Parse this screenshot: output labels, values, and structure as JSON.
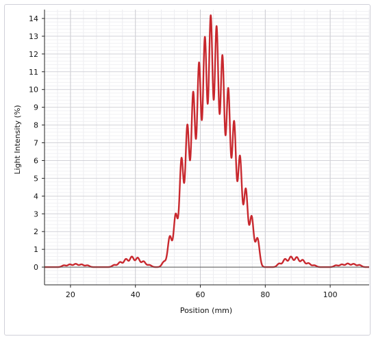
{
  "chart_data": {
    "type": "line",
    "title": "",
    "xlabel": "Position (mm)",
    "ylabel": "Light Intensity (%)",
    "xlim": [
      12,
      112
    ],
    "ylim": [
      -1,
      14.5
    ],
    "x_ticks": [
      20,
      40,
      60,
      80,
      100
    ],
    "y_ticks": [
      0,
      1,
      2,
      3,
      4,
      5,
      6,
      7,
      8,
      9,
      10,
      11,
      12,
      13,
      14
    ],
    "grid": true,
    "legend": "none",
    "series": [
      {
        "color": "#c8282e",
        "fringe_peaks": {
          "x": [
            18,
            19.8,
            21.6,
            23.4,
            25.2,
            33.5,
            35.3,
            37.1,
            38.9,
            40.7,
            42.5,
            44.3,
            48.8,
            50.6,
            52.4,
            54.2,
            56.0,
            57.8,
            59.6,
            61.4,
            63.2,
            65.0,
            66.8,
            68.6,
            70.4,
            72.2,
            74.0,
            75.8,
            77.6,
            84.3,
            86.1,
            87.9,
            89.7,
            91.5,
            93.3,
            95.1,
            101.8,
            103.6,
            105.4,
            107.2,
            109.0
          ],
          "y": [
            0.1,
            0.15,
            0.18,
            0.15,
            0.1,
            0.12,
            0.28,
            0.45,
            0.58,
            0.52,
            0.32,
            0.12,
            0.3,
            1.7,
            2.9,
            6.0,
            7.8,
            9.6,
            11.2,
            12.6,
            13.8,
            13.2,
            11.6,
            9.8,
            8.0,
            6.1,
            4.3,
            2.8,
            1.6,
            0.2,
            0.45,
            0.58,
            0.55,
            0.4,
            0.22,
            0.1,
            0.1,
            0.15,
            0.2,
            0.18,
            0.12
          ]
        }
      }
    ]
  }
}
